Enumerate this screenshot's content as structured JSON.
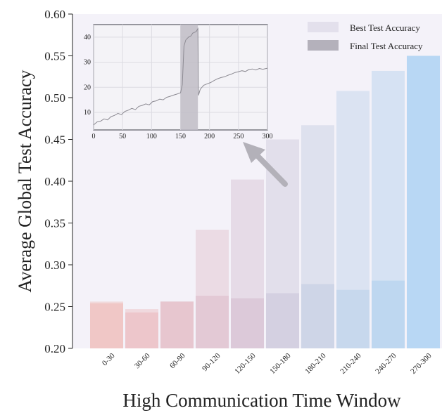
{
  "chart_data": {
    "type": "bar",
    "xlabel": "High Communication Time Window",
    "ylabel": "Average Global Test Accuracy",
    "ylim": [
      0.2,
      0.6
    ],
    "yticks": [
      "0.20",
      "0.25",
      "0.30",
      "0.35",
      "0.40",
      "0.45",
      "0.50",
      "0.55",
      "0.60"
    ],
    "categories": [
      "0-30",
      "30-60",
      "60-90",
      "90-120",
      "120-150",
      "150-180",
      "180-210",
      "210-240",
      "240-270",
      "270-300"
    ],
    "series": [
      {
        "name": "Best Test Accuracy",
        "values": [
          0.256,
          0.247,
          0.256,
          0.342,
          0.402,
          0.45,
          0.467,
          0.508,
          0.532,
          0.55
        ]
      },
      {
        "name": "Final Test Accuracy",
        "values": [
          0.254,
          0.243,
          0.256,
          0.263,
          0.26,
          0.266,
          0.277,
          0.27,
          0.281,
          0.55
        ]
      }
    ],
    "bar_colors": [
      "#efc6c4",
      "#ecc5c9",
      "#e7c5cd",
      "#e3c8d4",
      "#dbc8d8",
      "#d3cfe0",
      "#ccd4e6",
      "#c6d7ec",
      "#bdd6ef",
      "#b6d6f3"
    ],
    "legend_position": "top-right",
    "grid": false,
    "inset": {
      "type": "line",
      "x_ticks": [
        "0",
        "50",
        "100",
        "150",
        "200",
        "250",
        "300"
      ],
      "y_ticks": [
        "10",
        "20",
        "30",
        "40"
      ],
      "xlim": [
        0,
        300
      ],
      "ylim": [
        3,
        45
      ],
      "highlight_range": [
        150,
        180
      ],
      "points": [
        [
          0,
          5.0
        ],
        [
          6,
          6.2
        ],
        [
          12,
          6.5
        ],
        [
          18,
          7.4
        ],
        [
          24,
          7.0
        ],
        [
          30,
          8.3
        ],
        [
          36,
          8.8
        ],
        [
          42,
          9.6
        ],
        [
          48,
          9.1
        ],
        [
          54,
          10.4
        ],
        [
          60,
          10.9
        ],
        [
          66,
          11.6
        ],
        [
          72,
          11.1
        ],
        [
          78,
          12.4
        ],
        [
          84,
          12.8
        ],
        [
          90,
          13.4
        ],
        [
          96,
          13.0
        ],
        [
          102,
          14.3
        ],
        [
          108,
          14.6
        ],
        [
          114,
          15.3
        ],
        [
          120,
          15.0
        ],
        [
          126,
          16.0
        ],
        [
          132,
          16.4
        ],
        [
          138,
          16.9
        ],
        [
          144,
          17.3
        ],
        [
          150,
          17.8
        ],
        [
          153,
          21.0
        ],
        [
          156,
          36.5
        ],
        [
          159,
          38.8
        ],
        [
          162,
          39.6
        ],
        [
          165,
          40.2
        ],
        [
          168,
          40.5
        ],
        [
          171,
          41.6
        ],
        [
          174,
          41.9
        ],
        [
          177,
          42.2
        ],
        [
          180,
          43.4
        ],
        [
          181,
          16.8
        ],
        [
          184,
          19.2
        ],
        [
          190,
          20.8
        ],
        [
          196,
          21.4
        ],
        [
          202,
          21.9
        ],
        [
          208,
          22.7
        ],
        [
          214,
          23.4
        ],
        [
          220,
          23.9
        ],
        [
          226,
          24.2
        ],
        [
          232,
          24.8
        ],
        [
          238,
          25.3
        ],
        [
          244,
          25.9
        ],
        [
          250,
          26.2
        ],
        [
          256,
          26.6
        ],
        [
          262,
          26.3
        ],
        [
          268,
          27.1
        ],
        [
          274,
          27.3
        ],
        [
          280,
          26.9
        ],
        [
          286,
          27.5
        ],
        [
          292,
          27.2
        ],
        [
          300,
          27.6
        ]
      ]
    }
  }
}
